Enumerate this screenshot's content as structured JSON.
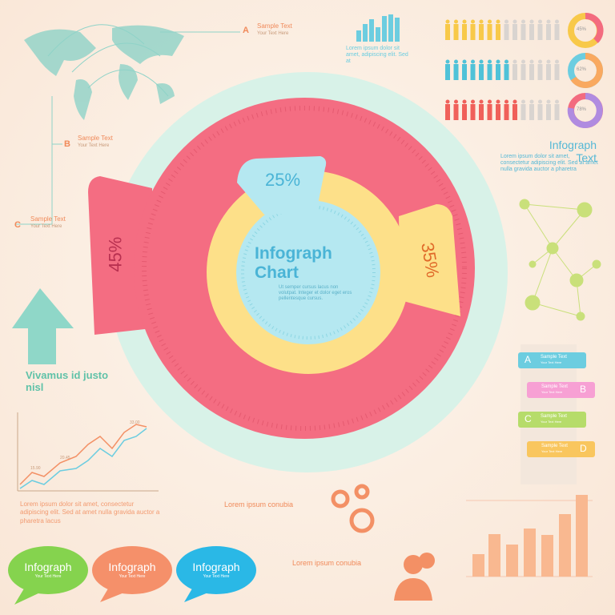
{
  "top_callouts": [
    {
      "letter": "A",
      "title": "Sample Text",
      "subtitle": "Your Text Here"
    },
    {
      "letter": "B",
      "title": "Sample Text",
      "subtitle": "Your Text Here"
    },
    {
      "letter": "C",
      "title": "Sample Text",
      "subtitle": "Your Text Here"
    }
  ],
  "top_text": "Lorem ipsum dolor sit amet, adipiscing elit. Sed at",
  "people_stats": [
    "45%",
    "62%",
    "78%"
  ],
  "side_text": {
    "title": "Infograph Text",
    "body": "Lorem ipsum dolor sit amet, consectetur adipiscing elit. Sed at amet nulla gravida auctor a pharetra"
  },
  "main_chart": {
    "title": "Infograph Chart",
    "body": "Ut semper cursus lacus non volutpat. Integer et dolor eget eros pellentesque cursus.",
    "segments": [
      "25%",
      "35%",
      "45%"
    ]
  },
  "arrow_text": "Vivamus id justo nisl",
  "line_chart_labels": [
    "15.90",
    "20.45",
    "33.00"
  ],
  "left_text": "Lorem ipsum dolor sit amet, consectetur adipiscing elit. Sed at amet nulla gravida auctor a pharetra lacus",
  "tabs": [
    {
      "letter": "A",
      "title": "Sample Text",
      "subtitle": "Your Text Here"
    },
    {
      "letter": "B",
      "title": "Sample Text",
      "subtitle": "Your Text Here"
    },
    {
      "letter": "C",
      "title": "Sample Text",
      "subtitle": "Your Text Here"
    },
    {
      "letter": "D",
      "title": "Sample Text",
      "subtitle": "Your Text Here"
    }
  ],
  "sections": [
    {
      "title": "Lorem ipsum conubia"
    },
    {
      "title": "Lorem ipsum conubia"
    }
  ],
  "bubbles": [
    {
      "title": "Infograph",
      "subtitle": "Your Text Here"
    },
    {
      "title": "Infograph",
      "subtitle": "Your Text Here"
    },
    {
      "title": "Infograph",
      "subtitle": "Your Text Here"
    }
  ]
}
